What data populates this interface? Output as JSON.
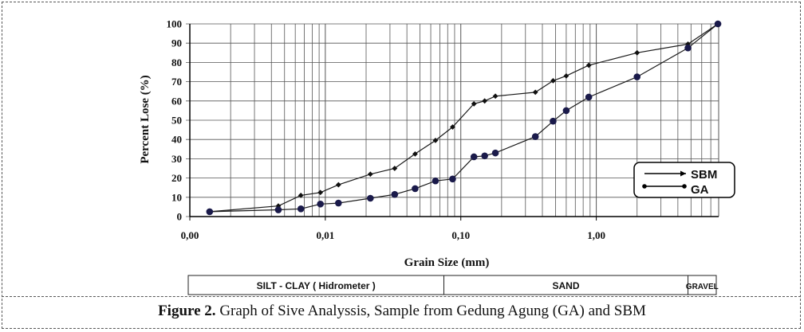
{
  "chart_data": {
    "type": "line",
    "xscale": "log",
    "xlim": [
      0.001,
      8
    ],
    "ylim": [
      0,
      100
    ],
    "yticks": [
      0,
      10,
      20,
      30,
      40,
      50,
      60,
      70,
      80,
      90,
      100
    ],
    "xtick_labels": [
      {
        "x": 0.001,
        "label": "0,00"
      },
      {
        "x": 0.01,
        "label": "0,01"
      },
      {
        "x": 0.1,
        "label": "0,10"
      },
      {
        "x": 1,
        "label": "1,00"
      }
    ],
    "xlabel": "Grain Size  (mm)",
    "ylabel": "Percent Lose   (%)",
    "grid": true,
    "legend_position": "right",
    "series": [
      {
        "name": "SBM",
        "marker": "diamond",
        "points": [
          {
            "x": 0.0014,
            "y": 2.5
          },
          {
            "x": 0.0045,
            "y": 5.5
          },
          {
            "x": 0.0066,
            "y": 11
          },
          {
            "x": 0.0092,
            "y": 12.5
          },
          {
            "x": 0.0125,
            "y": 16.5
          },
          {
            "x": 0.0215,
            "y": 22
          },
          {
            "x": 0.0325,
            "y": 25
          },
          {
            "x": 0.046,
            "y": 32.5
          },
          {
            "x": 0.065,
            "y": 39.5
          },
          {
            "x": 0.087,
            "y": 46.5
          },
          {
            "x": 0.125,
            "y": 58.5
          },
          {
            "x": 0.15,
            "y": 60
          },
          {
            "x": 0.18,
            "y": 62.5
          },
          {
            "x": 0.355,
            "y": 64.5
          },
          {
            "x": 0.48,
            "y": 70.5
          },
          {
            "x": 0.6,
            "y": 73
          },
          {
            "x": 0.88,
            "y": 78.5
          },
          {
            "x": 2.0,
            "y": 85
          },
          {
            "x": 4.75,
            "y": 89.5
          },
          {
            "x": 7.9,
            "y": 100
          }
        ]
      },
      {
        "name": "GA",
        "marker": "circle",
        "points": [
          {
            "x": 0.0014,
            "y": 2.5
          },
          {
            "x": 0.0045,
            "y": 3.5
          },
          {
            "x": 0.0066,
            "y": 4
          },
          {
            "x": 0.0092,
            "y": 6.5
          },
          {
            "x": 0.0125,
            "y": 7
          },
          {
            "x": 0.0215,
            "y": 9.5
          },
          {
            "x": 0.0325,
            "y": 11.5
          },
          {
            "x": 0.046,
            "y": 14.5
          },
          {
            "x": 0.065,
            "y": 18.5
          },
          {
            "x": 0.087,
            "y": 19.5
          },
          {
            "x": 0.125,
            "y": 31
          },
          {
            "x": 0.15,
            "y": 31.5
          },
          {
            "x": 0.18,
            "y": 33
          },
          {
            "x": 0.355,
            "y": 41.5
          },
          {
            "x": 0.48,
            "y": 49.5
          },
          {
            "x": 0.6,
            "y": 55
          },
          {
            "x": 0.88,
            "y": 62
          },
          {
            "x": 2.0,
            "y": 72.5
          },
          {
            "x": 4.75,
            "y": 87.5
          },
          {
            "x": 7.9,
            "y": 100
          }
        ]
      }
    ],
    "classification": [
      {
        "label": "SILT - CLAY ( Hidrometer )",
        "from": 0.001,
        "to": 0.075
      },
      {
        "label": "SAND",
        "from": 0.075,
        "to": 4.75
      },
      {
        "label": "GRAVEL",
        "from": 4.75,
        "to": 8
      }
    ]
  },
  "caption": {
    "bold": "Figure 2.",
    "text": " Graph of Sive Analyssis, Sample from Gedung Agung (GA) and SBM"
  },
  "colors": {
    "line": "#1a1a1a",
    "sbm_marker": "#111111",
    "ga_marker": "#1a1a4a",
    "grid": "#555555",
    "legend_border": "#000000"
  }
}
